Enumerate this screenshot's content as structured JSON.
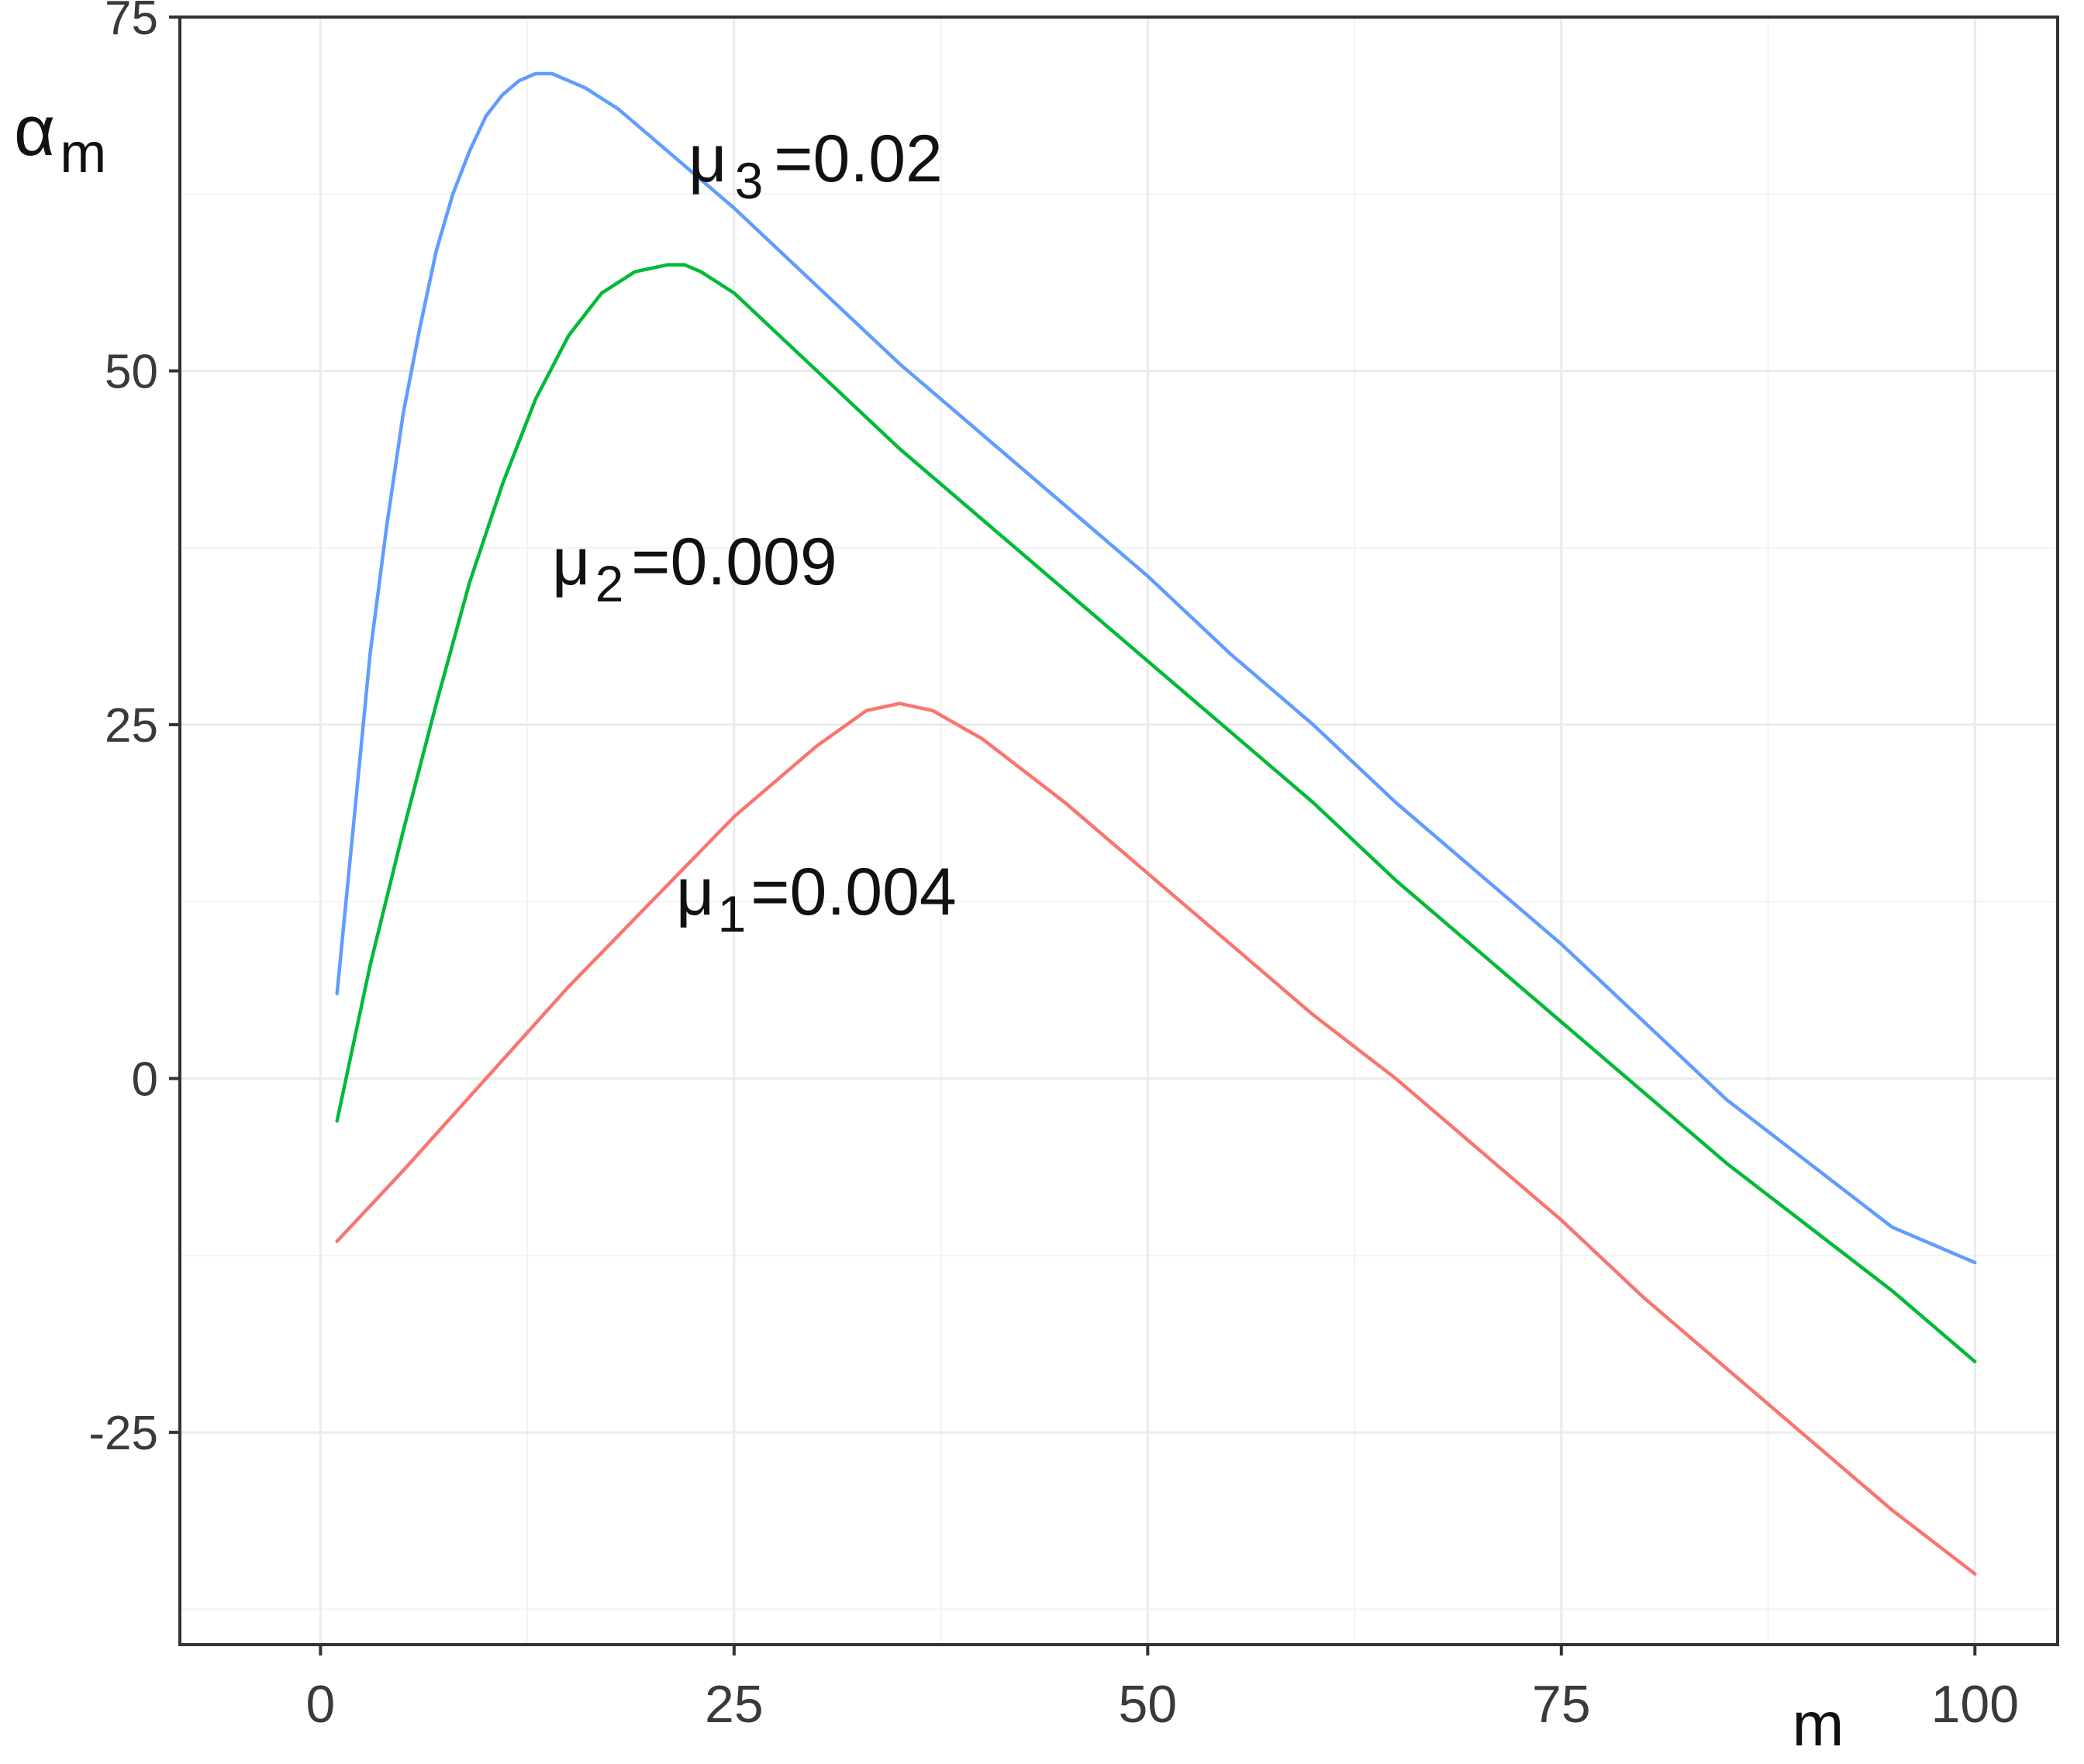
{
  "chart_data": {
    "type": "line",
    "title": "",
    "xlabel": "m",
    "ylabel": "α",
    "ylabel_sub": "m",
    "xlim": [
      -8.5,
      105
    ],
    "ylim": [
      -40,
      75
    ],
    "xticks": [
      0,
      25,
      50,
      75,
      100
    ],
    "yticks": [
      -25,
      0,
      25,
      50,
      75
    ],
    "xtick_labels": [
      "0",
      "25",
      "50",
      "75",
      "100"
    ],
    "ytick_labels": [
      "-25",
      "0",
      "25",
      "50",
      "75"
    ],
    "grid": true,
    "legend": "none",
    "series": [
      {
        "label_symbol": "μ",
        "label_sub": "3",
        "label_value": "=0.02",
        "color": "#619cff",
        "x": [
          1,
          2,
          3,
          4,
          5,
          6,
          7,
          8,
          9,
          10,
          11,
          12,
          13,
          14,
          16,
          18,
          20,
          25,
          30,
          35,
          40,
          45,
          50,
          55,
          60,
          65,
          70,
          75,
          80,
          85,
          90,
          95,
          100
        ],
        "y": [
          6,
          18,
          30,
          39,
          47,
          53,
          58.5,
          62.5,
          65.5,
          68,
          69.5,
          70.5,
          71,
          71,
          70,
          68.5,
          66.5,
          61.5,
          56,
          50.5,
          45.5,
          40.5,
          35.5,
          30,
          25,
          19.5,
          14.5,
          9.5,
          4,
          -1.5,
          -6,
          -10.5,
          -13
        ]
      },
      {
        "label_symbol": "μ",
        "label_sub": "2",
        "label_value": "=0.009",
        "color": "#00ba38",
        "x": [
          1,
          3,
          5,
          7,
          9,
          11,
          13,
          15,
          17,
          19,
          21,
          22,
          23,
          25,
          30,
          35,
          40,
          45,
          50,
          55,
          60,
          65,
          70,
          75,
          80,
          85,
          90,
          95,
          100
        ],
        "y": [
          -3,
          8,
          17.5,
          26.5,
          35,
          42,
          48,
          52.5,
          55.5,
          57,
          57.5,
          57.5,
          57,
          55.5,
          50,
          44.5,
          39.5,
          34.5,
          29.5,
          24.5,
          19.5,
          14,
          9,
          4,
          -1,
          -6,
          -10.5,
          -15,
          -20
        ]
      },
      {
        "label_symbol": "μ",
        "label_sub": "1",
        "label_value": "=0.004",
        "color": "#f8766d",
        "x": [
          1,
          5,
          10,
          15,
          20,
          25,
          30,
          33,
          35,
          37,
          40,
          45,
          50,
          55,
          60,
          65,
          70,
          75,
          80,
          85,
          90,
          95,
          100
        ],
        "y": [
          -11.5,
          -6.5,
          0,
          6.5,
          12.5,
          18.5,
          23.5,
          26,
          26.5,
          26,
          24,
          19.5,
          14.5,
          9.5,
          4.5,
          0,
          -5,
          -10,
          -15.5,
          -20.5,
          -25.5,
          -30.5,
          -35
        ]
      }
    ]
  }
}
